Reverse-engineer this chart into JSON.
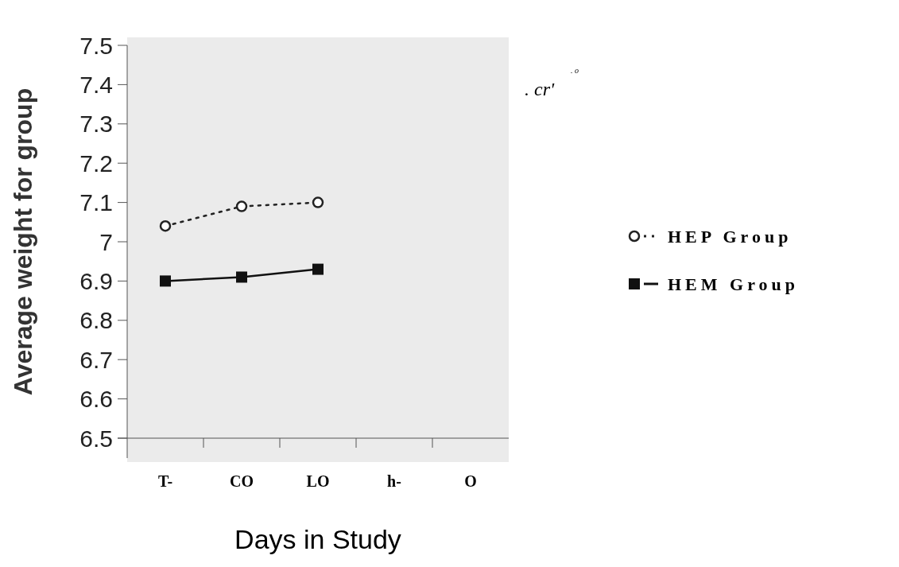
{
  "chart_data": {
    "type": "line",
    "xlabel": "Days in Study",
    "ylabel": "Average weight for group",
    "categories": [
      "T-",
      "CO",
      "LO",
      "h-",
      "O"
    ],
    "series": [
      {
        "name": "HEP Group",
        "color": "#222222",
        "values": [
          7.04,
          7.09,
          7.1,
          null,
          null
        ],
        "marker": "circle",
        "line_style": "dotted"
      },
      {
        "name": "HEM Group",
        "color": "#111111",
        "values": [
          6.9,
          6.91,
          6.93,
          null,
          null
        ],
        "marker": "square",
        "line_style": "solid"
      }
    ],
    "ylim": [
      6.5,
      7.5
    ],
    "yticks": [
      6.5,
      6.6,
      6.7,
      6.8,
      6.9,
      7,
      7.1,
      7.2,
      7.3,
      7.4,
      7.5
    ],
    "legend": "right",
    "grid": false,
    "annotations": [
      ". cr'",
      ". o"
    ]
  }
}
